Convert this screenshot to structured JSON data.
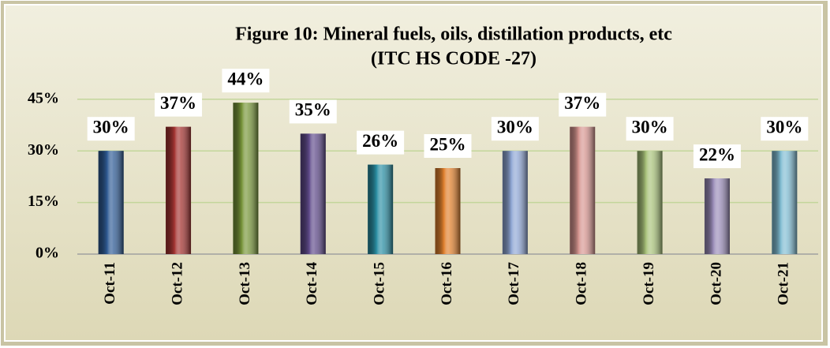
{
  "chart_data": {
    "type": "bar",
    "title": "Figure  10:  Mineral fuels, oils, distillation products, etc",
    "subtitle": "(ITC HS CODE -27)",
    "categories": [
      "Oct-11",
      "Oct-12",
      "Oct-13",
      "Oct-14",
      "Oct-15",
      "Oct-16",
      "Oct-17",
      "Oct-18",
      "Oct-19",
      "Oct-20",
      "Oct-21"
    ],
    "values": [
      30,
      37,
      44,
      35,
      26,
      25,
      30,
      37,
      30,
      22,
      30
    ],
    "value_labels": [
      "30%",
      "37%",
      "44%",
      "35%",
      "26%",
      "25%",
      "30%",
      "37%",
      "30%",
      "22%",
      "30%"
    ],
    "colors": [
      "#2f5b94",
      "#a43432",
      "#78963a",
      "#5f4a8a",
      "#2b8fa3",
      "#e0812e",
      "#8fa6d4",
      "#d69590",
      "#a8c27a",
      "#9a8cb8",
      "#80bcd2"
    ],
    "ylim": [
      0,
      50
    ],
    "yticks": [
      {
        "value": 0,
        "label": "0%"
      },
      {
        "value": 15,
        "label": "15%"
      },
      {
        "value": 30,
        "label": "30%"
      },
      {
        "value": 45,
        "label": "45%"
      }
    ],
    "grid": true
  }
}
